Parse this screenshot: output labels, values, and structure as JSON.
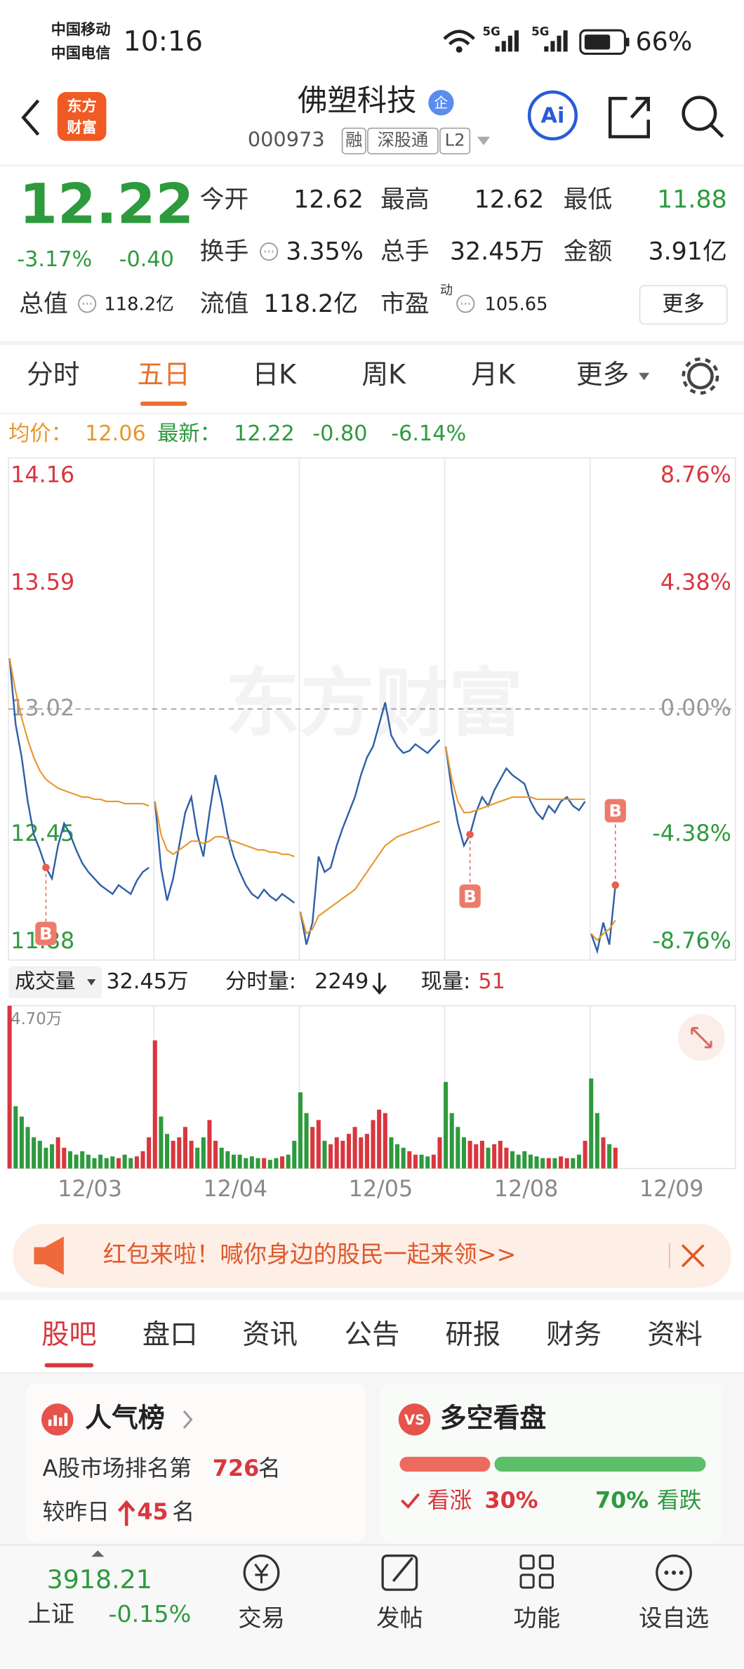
{
  "status_bar": {
    "carrier_1": "中国移动",
    "carrier_2": "中国电信",
    "time": "10:16",
    "network_1": "5G",
    "network_2": "5G",
    "battery": "66%"
  },
  "header": {
    "logo": [
      "东方",
      "财富"
    ],
    "title": "佛塑科技",
    "badge": "企",
    "code": "000973",
    "tags": [
      "融",
      "深股通",
      "L2"
    ],
    "ai": "Ai"
  },
  "quote": {
    "price": "12.22",
    "change_pct": "-3.17%",
    "change": "-0.40",
    "fields": [
      {
        "label": "今开",
        "value": "12.62"
      },
      {
        "label": "最高",
        "value": "12.62"
      },
      {
        "label": "最低",
        "value": "11.88"
      },
      {
        "label": "换手",
        "value": "3.35%"
      },
      {
        "label": "总手",
        "value": "32.45万"
      },
      {
        "label": "金额",
        "value": "3.91亿"
      },
      {
        "label": "总值",
        "value": "118.2亿"
      },
      {
        "label": "流值",
        "value": "118.2亿"
      },
      {
        "label": "市盈",
        "sup": "动",
        "value": "105.65"
      }
    ],
    "more": "更多"
  },
  "chart_tabs": {
    "items": [
      "分时",
      "五日",
      "日K",
      "周K",
      "月K",
      "更多"
    ],
    "active": 1
  },
  "legend": {
    "avg_label": "均价：",
    "avg": "12.06",
    "last_label": "最新：",
    "last": "12.22",
    "change": "-0.80",
    "change_pct": "-6.14%"
  },
  "chart_data": [
    {
      "type": "line",
      "watermark": "东方财富",
      "day_labels": [
        "12/03",
        "12/04",
        "12/05",
        "12/08",
        "12/09"
      ],
      "series": [
        {
          "color": "#2f5fa8",
          "values": [
            13.25,
            12.95,
            12.8,
            12.6,
            12.45,
            12.38,
            12.3,
            12.25,
            12.4,
            12.5,
            12.45,
            12.38,
            12.32,
            12.28,
            12.25,
            12.22,
            12.2,
            12.18,
            12.22,
            12.2,
            12.18,
            12.24,
            12.28,
            12.3,
            12.6,
            12.3,
            12.15,
            12.25,
            12.4,
            12.55,
            12.62,
            12.45,
            12.35,
            12.55,
            12.72,
            12.6,
            12.45,
            12.35,
            12.28,
            12.22,
            12.18,
            12.16,
            12.2,
            12.17,
            12.15,
            12.18,
            12.16,
            12.14,
            12.1,
            11.95,
            12.05,
            12.35,
            12.28,
            12.3,
            12.4,
            12.48,
            12.55,
            12.62,
            12.72,
            12.8,
            12.85,
            12.95,
            13.05,
            12.9,
            12.85,
            12.82,
            12.83,
            12.86,
            12.84,
            12.82,
            12.85,
            12.88,
            12.85,
            12.65,
            12.5,
            12.4,
            12.45,
            12.55,
            12.62,
            12.58,
            12.65,
            12.7,
            12.75,
            12.72,
            12.7,
            12.68,
            12.6,
            12.55,
            12.52,
            12.58,
            12.55,
            12.6,
            12.62,
            12.58,
            12.56,
            12.6,
            12.0,
            11.92,
            12.05,
            11.95,
            12.22
          ]
        },
        {
          "color": "#e8962c",
          "values": [
            13.25,
            13.1,
            12.98,
            12.88,
            12.8,
            12.74,
            12.7,
            12.68,
            12.66,
            12.65,
            12.64,
            12.63,
            12.62,
            12.62,
            12.61,
            12.61,
            12.6,
            12.6,
            12.6,
            12.59,
            12.59,
            12.59,
            12.59,
            12.58,
            12.6,
            12.45,
            12.38,
            12.36,
            12.38,
            12.4,
            12.42,
            12.42,
            12.41,
            12.42,
            12.44,
            12.44,
            12.43,
            12.42,
            12.41,
            12.4,
            12.39,
            12.38,
            12.38,
            12.37,
            12.37,
            12.36,
            12.36,
            12.35,
            12.1,
            12.0,
            12.02,
            12.08,
            12.1,
            12.12,
            12.14,
            12.16,
            12.18,
            12.2,
            12.24,
            12.28,
            12.32,
            12.36,
            12.4,
            12.42,
            12.44,
            12.45,
            12.46,
            12.47,
            12.48,
            12.49,
            12.5,
            12.51,
            12.85,
            12.7,
            12.6,
            12.55,
            12.55,
            12.56,
            12.57,
            12.58,
            12.59,
            12.6,
            12.61,
            12.62,
            12.62,
            12.62,
            12.62,
            12.61,
            12.61,
            12.61,
            12.61,
            12.61,
            12.61,
            12.61,
            12.61,
            12.61,
            12.0,
            11.97,
            12.0,
            12.02,
            12.06
          ]
        }
      ],
      "ylim": [
        11.88,
        14.16
      ],
      "yticks": [
        11.88,
        12.45,
        13.02,
        13.59,
        14.16
      ],
      "y2lim": [
        -8.76,
        8.76
      ],
      "y2ticks": [
        {
          "value": -8.76,
          "label": "-8.76%"
        },
        {
          "value": -4.38,
          "label": "-4.38%"
        },
        {
          "value": 0,
          "label": "0.00%"
        },
        {
          "value": 4.38,
          "label": "4.38%"
        },
        {
          "value": 8.76,
          "label": "8.76%"
        }
      ],
      "annotations": [
        "B",
        "B",
        "B"
      ]
    },
    {
      "type": "bar",
      "colors": {
        "up": "#d9363e",
        "down": "#2e9a3e"
      },
      "series": [
        {
          "values": [
            47000,
            18000,
            15000,
            12000,
            9000,
            8000,
            6000,
            7000,
            9000,
            6000,
            5000,
            4000,
            5000,
            4000,
            3000,
            4000,
            3000,
            3500,
            3000,
            4000,
            3000,
            3500,
            5000,
            9000,
            37000,
            15000,
            10000,
            8000,
            9000,
            12000,
            8000,
            6000,
            9000,
            14000,
            8000,
            6000,
            5000,
            4000,
            4000,
            3000,
            3500,
            3000,
            3000,
            2500,
            3000,
            3500,
            4000,
            8000,
            22000,
            16000,
            12000,
            14000,
            8000,
            7000,
            9000,
            8000,
            10000,
            12000,
            9000,
            10000,
            14000,
            17000,
            16000,
            9000,
            7000,
            6000,
            5000,
            4000,
            4000,
            3500,
            4000,
            9000,
            25000,
            16000,
            12000,
            9000,
            8000,
            7000,
            8000,
            6000,
            7000,
            8000,
            6000,
            5000,
            4000,
            5000,
            4000,
            3500,
            3000,
            3000,
            3000,
            3500,
            3000,
            3000,
            4000,
            8000,
            26000,
            16000,
            9000,
            7000,
            6000
          ]
        }
      ],
      "ylim": [
        0,
        47000
      ],
      "yticks": [
        {
          "value": 47000,
          "label": "4.70万"
        }
      ]
    }
  ],
  "volume_info": {
    "label": "成交量",
    "total": "32.45万",
    "tick_label": "分时量:",
    "tick": "2249",
    "now_label": "现量:",
    "now": "51"
  },
  "banner": {
    "text": "红包来啦！喊你身边的股民一起来领>>"
  },
  "tabs": {
    "items": [
      "股吧",
      "盘口",
      "资讯",
      "公告",
      "研报",
      "财务",
      "资料"
    ],
    "active": 0
  },
  "popularity": {
    "title": "人气榜",
    "rank_prefix": "A股市场排名第",
    "rank": "726",
    "rank_suffix": "名",
    "change_prefix": "较昨日",
    "change": "45",
    "change_suffix": "名"
  },
  "sentiment": {
    "title": "多空看盘",
    "icon": "VS",
    "labels": [
      "看涨",
      "看跌"
    ],
    "values": [
      30,
      70
    ],
    "value_labels": [
      "30%",
      "70%"
    ],
    "colors": [
      "#ec6b5e",
      "#5cbf6a"
    ]
  },
  "bottom_nav": {
    "index_value": "3918.21",
    "index_name": "上证",
    "index_change": "-0.15%",
    "items": [
      "交易",
      "发帖",
      "功能",
      "设自选"
    ]
  }
}
